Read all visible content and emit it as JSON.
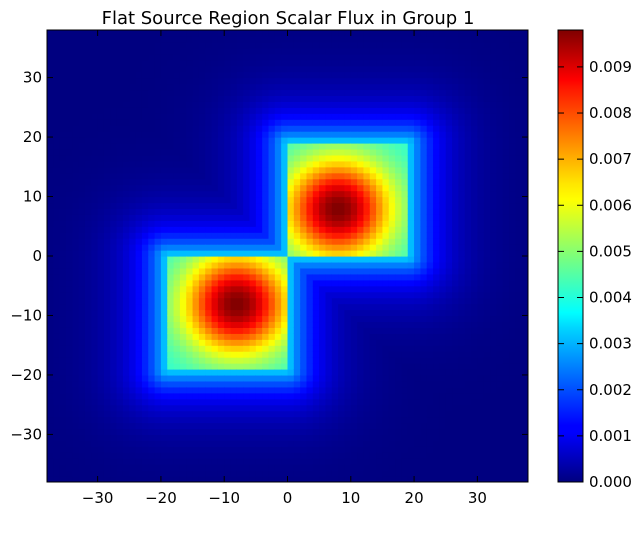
{
  "chart_data": {
    "type": "heatmap",
    "title": "Flat Source Region Scalar Flux in Group 1",
    "xlabel": "",
    "ylabel": "",
    "xlim": [
      -38,
      38
    ],
    "ylim": [
      -38,
      38
    ],
    "xticks": [
      -30,
      -20,
      -10,
      0,
      10,
      20,
      30
    ],
    "yticks": [
      -30,
      -20,
      -10,
      0,
      10,
      20,
      30
    ],
    "colormap": "jet",
    "colorbar": {
      "range": [
        0.0,
        0.0098
      ],
      "ticks": [
        "0.000",
        "0.001",
        "0.002",
        "0.003",
        "0.004",
        "0.005",
        "0.006",
        "0.007",
        "0.008",
        "0.009"
      ]
    },
    "fuel_regions": [
      {
        "x_range": [
          0,
          19
        ],
        "y_range": [
          0,
          19
        ],
        "peak": [
          8,
          8
        ],
        "peak_value": 0.0098
      },
      {
        "x_range": [
          -19,
          0
        ],
        "y_range": [
          -19,
          0
        ],
        "peak": [
          -8,
          -8
        ],
        "peak_value": 0.0098
      }
    ],
    "background_value": 0.0
  }
}
